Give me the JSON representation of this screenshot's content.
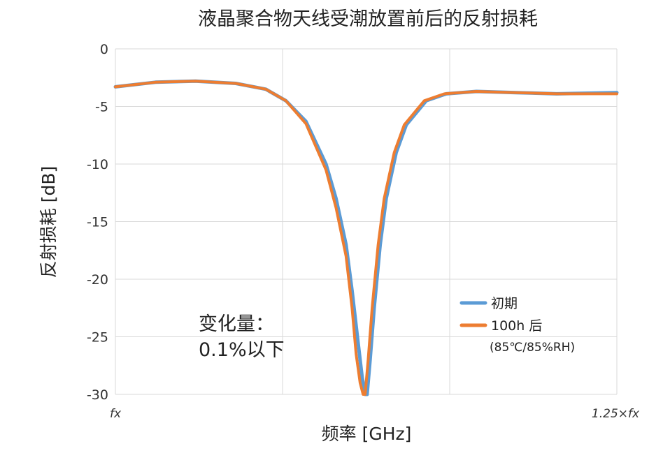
{
  "chart_data": {
    "type": "line",
    "title": "液晶聚合物天线受潮放置前后的反射损耗",
    "xlabel": "频率 [GHz]",
    "ylabel": "反射损耗 [dB]",
    "x_ticks": [
      "fx",
      "1.25×fx"
    ],
    "x_range": [
      1.0,
      1.25
    ],
    "ylim": [
      -30,
      0
    ],
    "y_ticks": [
      0,
      -5,
      -10,
      -15,
      -20,
      -25,
      -30
    ],
    "grid": true,
    "legend_position": "bottom-right",
    "series": [
      {
        "name": "初期",
        "color": "#5b9bd5",
        "x": [
          1.0,
          1.02,
          1.04,
          1.06,
          1.075,
          1.085,
          1.095,
          1.105,
          1.11,
          1.115,
          1.118,
          1.121,
          1.123,
          1.1245,
          1.1255,
          1.127,
          1.129,
          1.132,
          1.135,
          1.14,
          1.145,
          1.155,
          1.165,
          1.18,
          1.2,
          1.22,
          1.25
        ],
        "y": [
          -3.3,
          -2.9,
          -2.8,
          -3.0,
          -3.5,
          -4.5,
          -6.3,
          -10.0,
          -13.0,
          -17.0,
          -21.0,
          -25.5,
          -28.5,
          -30.0,
          -30.0,
          -27.0,
          -22.5,
          -17.0,
          -13.0,
          -9.0,
          -6.6,
          -4.5,
          -3.9,
          -3.7,
          -3.8,
          -3.9,
          -3.8
        ]
      },
      {
        "name": "100h 后",
        "sub": "(85℃/85%RH)",
        "color": "#ed7d31",
        "x": [
          1.0,
          1.02,
          1.04,
          1.06,
          1.075,
          1.085,
          1.095,
          1.105,
          1.11,
          1.115,
          1.118,
          1.12,
          1.122,
          1.1235,
          1.1245,
          1.126,
          1.128,
          1.131,
          1.134,
          1.139,
          1.144,
          1.154,
          1.164,
          1.18,
          1.2,
          1.22,
          1.25
        ],
        "y": [
          -3.3,
          -2.9,
          -2.8,
          -3.0,
          -3.5,
          -4.5,
          -6.5,
          -10.5,
          -13.8,
          -18.0,
          -22.5,
          -26.5,
          -29.0,
          -30.0,
          -30.0,
          -27.0,
          -22.5,
          -17.0,
          -13.0,
          -9.0,
          -6.6,
          -4.5,
          -3.9,
          -3.7,
          -3.8,
          -3.9,
          -3.9
        ]
      }
    ],
    "annotations": [
      "变化量：",
      "0.1%以下"
    ]
  }
}
